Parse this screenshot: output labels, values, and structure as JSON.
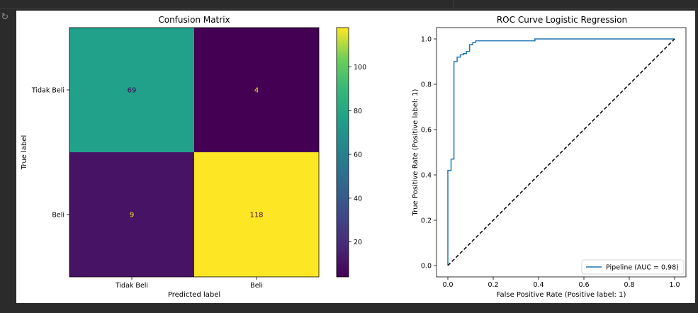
{
  "ui": {
    "gutter_icon": "refresh-icon",
    "gutter_glyph": "↻"
  },
  "chart_data": [
    {
      "type": "heatmap",
      "title": "Confusion Matrix",
      "xlabel": "Predicted label",
      "ylabel": "True label",
      "x_categories": [
        "Tidak Beli",
        "Beli"
      ],
      "y_categories": [
        "Tidak Beli",
        "Beli"
      ],
      "values": [
        [
          69,
          4
        ],
        [
          9,
          118
        ]
      ],
      "colormap": "viridis",
      "colorbar": {
        "range": [
          4,
          118
        ],
        "ticks": [
          20,
          40,
          60,
          80,
          100
        ]
      },
      "cell_colors": [
        [
          "#21a08a",
          "#440154"
        ],
        [
          "#471365",
          "#fde725"
        ]
      ],
      "text_colors": [
        [
          "#440154",
          "#fde725"
        ],
        [
          "#fde725",
          "#440154"
        ]
      ]
    },
    {
      "type": "line",
      "title": "ROC Curve Logistic Regression",
      "xlabel": "False Positive Rate (Positive label: 1)",
      "ylabel": "True Positive Rate (Positive label: 1)",
      "xlim": [
        0,
        1
      ],
      "ylim": [
        0,
        1
      ],
      "xticks": [
        0.0,
        0.2,
        0.4,
        0.6,
        0.8,
        1.0
      ],
      "yticks": [
        0.0,
        0.2,
        0.4,
        0.6,
        0.8,
        1.0
      ],
      "tick_labels": [
        "0.0",
        "0.2",
        "0.4",
        "0.6",
        "0.8",
        "1.0"
      ],
      "grid": false,
      "legend_position": "lower-right",
      "series": [
        {
          "name": "Pipeline (AUC = 0.98)",
          "color": "#1f77b4",
          "style": "solid",
          "x": [
            0,
            0,
            0.014,
            0.014,
            0.027,
            0.027,
            0.041,
            0.041,
            0.055,
            0.055,
            0.068,
            0.068,
            0.082,
            0.082,
            0.096,
            0.096,
            0.11,
            0.11,
            0.123,
            0.123,
            0.384,
            0.384,
            1.0,
            1.0
          ],
          "y": [
            0,
            0.42,
            0.42,
            0.47,
            0.47,
            0.9,
            0.9,
            0.92,
            0.92,
            0.93,
            0.93,
            0.935,
            0.935,
            0.945,
            0.945,
            0.975,
            0.975,
            0.985,
            0.985,
            0.992,
            0.992,
            1.0,
            1.0,
            1.0
          ]
        },
        {
          "name": "",
          "color": "#000000",
          "style": "dashed",
          "x": [
            0,
            1
          ],
          "y": [
            0,
            1
          ]
        }
      ]
    }
  ]
}
